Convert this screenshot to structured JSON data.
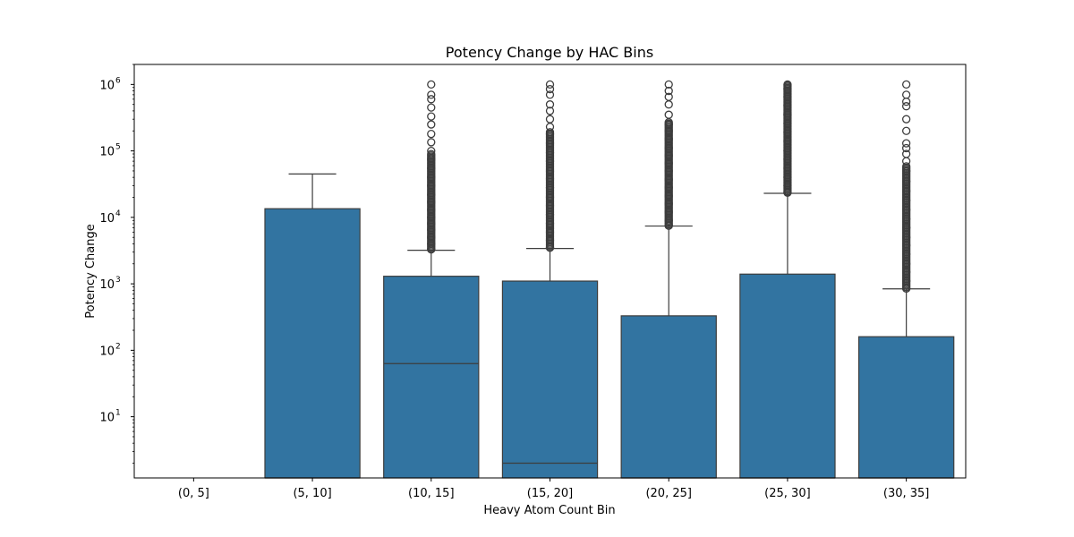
{
  "chart_data": {
    "type": "box",
    "title": "Potency Change by HAC Bins",
    "xlabel": "Heavy Atom Count Bin",
    "ylabel": "Potency Change",
    "yscale": "log",
    "ylim": [
      1.2,
      2000000
    ],
    "y_ticks": [
      {
        "value": 10,
        "base": "10",
        "exp": "1"
      },
      {
        "value": 100,
        "base": "10",
        "exp": "2"
      },
      {
        "value": 1000,
        "base": "10",
        "exp": "3"
      },
      {
        "value": 10000,
        "base": "10",
        "exp": "4"
      },
      {
        "value": 100000,
        "base": "10",
        "exp": "5"
      },
      {
        "value": 1000000,
        "base": "10",
        "exp": "6"
      }
    ],
    "categories": [
      "(0, 5]",
      "(5, 10]",
      "(10, 15]",
      "(15, 20]",
      "(20, 25]",
      "(25, 30]",
      "(30, 35]"
    ],
    "box_color": "#3274a1",
    "edge_color": "#3d3d3d",
    "boxes": [
      null,
      {
        "q1": 1.2,
        "median": 1.2,
        "q3": 13500,
        "whisker_low": 1.2,
        "whisker_high": 45000,
        "outliers": []
      },
      {
        "q1": 1.2,
        "median": 63,
        "q3": 1300,
        "whisker_low": 1.2,
        "whisker_high": 3200,
        "outliers": [
          3300,
          4000,
          5000,
          6500,
          8000,
          10000,
          13000,
          17000,
          22000,
          30000,
          40000,
          55000,
          75000,
          100000,
          135000,
          180000,
          250000,
          330000,
          450000,
          600000,
          700000,
          1000000
        ],
        "outlier_range": [
          3300,
          90000
        ]
      },
      {
        "q1": 1.2,
        "median": 2,
        "q3": 1100,
        "whisker_low": 1.2,
        "whisker_high": 3400,
        "outliers": [
          3500,
          4500,
          6000,
          8000,
          11000,
          15000,
          20000,
          28000,
          38000,
          50000,
          70000,
          95000,
          130000,
          180000,
          230000,
          300000,
          400000,
          500000,
          700000,
          850000,
          1000000
        ],
        "outlier_range": [
          3500,
          200000
        ]
      },
      {
        "q1": 1.2,
        "median": 1.2,
        "q3": 330,
        "whisker_low": 1.2,
        "whisker_high": 7400,
        "outliers": [
          7500,
          9000,
          12000,
          16000,
          21000,
          28000,
          37000,
          50000,
          65000,
          85000,
          110000,
          150000,
          200000,
          250000,
          350000,
          500000,
          650000,
          800000,
          1000000
        ],
        "outlier_range": [
          7500,
          270000
        ]
      },
      {
        "q1": 1.2,
        "median": 1.2,
        "q3": 1400,
        "whisker_low": 1.2,
        "whisker_high": 23000,
        "outliers": [
          24000,
          30000,
          40000,
          55000,
          75000,
          100000,
          140000,
          190000,
          260000,
          350000,
          480000,
          650000,
          850000,
          1000000
        ],
        "outlier_range": [
          23500,
          1000000
        ]
      },
      {
        "q1": 1.2,
        "median": 1.2,
        "q3": 160,
        "whisker_low": 1.2,
        "whisker_high": 840,
        "outliers": [
          850,
          1100,
          1500,
          2000,
          2800,
          3800,
          5000,
          7000,
          9500,
          13000,
          18000,
          25000,
          35000,
          50000,
          70000,
          90000,
          110000,
          130000,
          200000,
          300000,
          470000,
          550000,
          700000,
          1000000
        ],
        "outlier_range": [
          850,
          60000
        ]
      }
    ]
  }
}
